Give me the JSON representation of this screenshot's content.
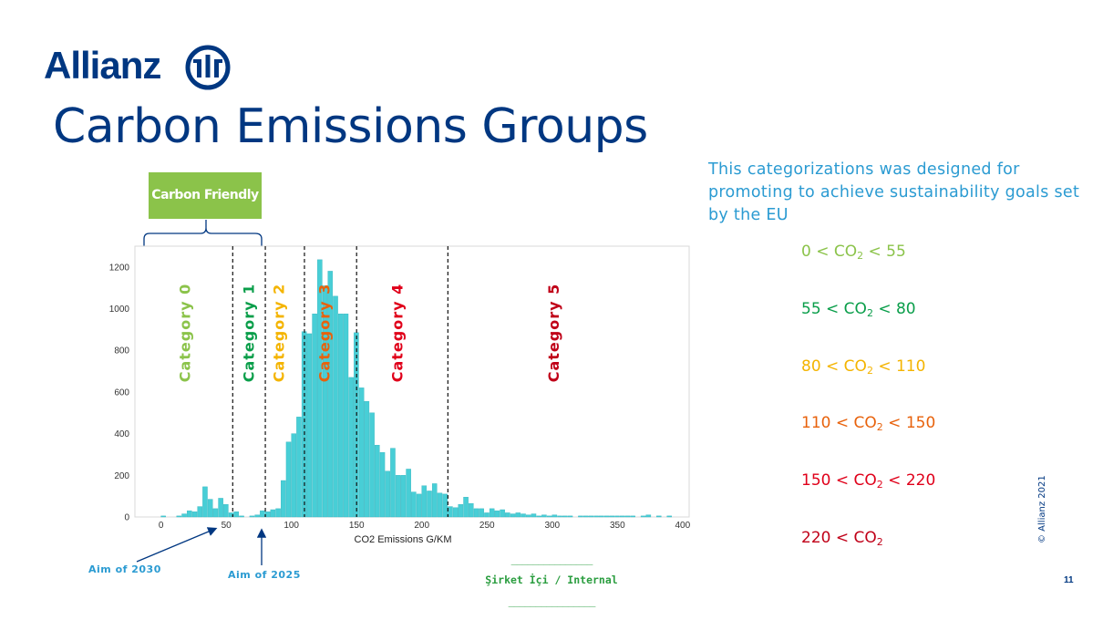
{
  "logo": {
    "text": "Allianz"
  },
  "title": "Carbon Emissions Groups",
  "description": "This categorizations was designed for promoting to achieve sustainability goals set by the EU",
  "callout": {
    "label": "Carbon Friendly"
  },
  "ranges": [
    {
      "pre": "0 < CO",
      "sub": "2",
      "post": " < 55",
      "color": "#8bc34a"
    },
    {
      "pre": "55 < CO",
      "sub": "2",
      "post": " < 80",
      "color": "#0a9e4a"
    },
    {
      "pre": "80 < CO",
      "sub": "2",
      "post": " < 110",
      "color": "#f4b400"
    },
    {
      "pre": "110 < CO",
      "sub": "2",
      "post": " < 150",
      "color": "#e8620c"
    },
    {
      "pre": "150 < CO",
      "sub": "2",
      "post": " < 220",
      "color": "#e0001a"
    },
    {
      "pre": "220 < CO",
      "sub": "2",
      "post": "",
      "color": "#c00018"
    }
  ],
  "annotations": {
    "aim_2030": "Aim of 2030",
    "aim_2025": "Aim of 2025"
  },
  "classification": {
    "rule_top": "_______________",
    "label": "Şirket İçi / Internal",
    "rule_bottom": "________________"
  },
  "footer": {
    "copyright": "© Allianz 2021",
    "page_number": "11"
  },
  "chart_data": {
    "type": "bar",
    "xlabel": "CO2 Emissions G/KM",
    "ylabel": "",
    "xlim": [
      -20,
      405
    ],
    "ylim": [
      0,
      1300
    ],
    "x_ticks": [
      0,
      50,
      100,
      150,
      200,
      250,
      300,
      350,
      400
    ],
    "y_ticks": [
      0,
      200,
      400,
      600,
      800,
      1000,
      1200
    ],
    "bar_color": "#48ced6",
    "bin_width": 4,
    "bins": [
      [
        0,
        5
      ],
      [
        12,
        5
      ],
      [
        16,
        15
      ],
      [
        20,
        30
      ],
      [
        24,
        25
      ],
      [
        28,
        50
      ],
      [
        32,
        145
      ],
      [
        36,
        85
      ],
      [
        40,
        40
      ],
      [
        44,
        90
      ],
      [
        48,
        60
      ],
      [
        52,
        20
      ],
      [
        56,
        25
      ],
      [
        60,
        5
      ],
      [
        68,
        5
      ],
      [
        72,
        10
      ],
      [
        76,
        30
      ],
      [
        80,
        25
      ],
      [
        84,
        35
      ],
      [
        88,
        40
      ],
      [
        92,
        175
      ],
      [
        96,
        360
      ],
      [
        100,
        400
      ],
      [
        104,
        480
      ],
      [
        108,
        890
      ],
      [
        112,
        880
      ],
      [
        116,
        975
      ],
      [
        120,
        1235
      ],
      [
        124,
        1110
      ],
      [
        128,
        1180
      ],
      [
        132,
        1060
      ],
      [
        136,
        975
      ],
      [
        140,
        975
      ],
      [
        144,
        670
      ],
      [
        148,
        885
      ],
      [
        152,
        620
      ],
      [
        156,
        555
      ],
      [
        160,
        500
      ],
      [
        164,
        345
      ],
      [
        168,
        310
      ],
      [
        172,
        220
      ],
      [
        176,
        330
      ],
      [
        180,
        200
      ],
      [
        184,
        200
      ],
      [
        188,
        230
      ],
      [
        192,
        120
      ],
      [
        196,
        110
      ],
      [
        200,
        150
      ],
      [
        204,
        125
      ],
      [
        208,
        160
      ],
      [
        212,
        115
      ],
      [
        216,
        110
      ],
      [
        220,
        50
      ],
      [
        224,
        45
      ],
      [
        228,
        60
      ],
      [
        232,
        95
      ],
      [
        236,
        65
      ],
      [
        240,
        40
      ],
      [
        244,
        40
      ],
      [
        248,
        20
      ],
      [
        252,
        40
      ],
      [
        256,
        30
      ],
      [
        260,
        35
      ],
      [
        264,
        20
      ],
      [
        268,
        15
      ],
      [
        272,
        20
      ],
      [
        276,
        15
      ],
      [
        280,
        10
      ],
      [
        284,
        15
      ],
      [
        288,
        5
      ],
      [
        292,
        10
      ],
      [
        296,
        5
      ],
      [
        300,
        10
      ],
      [
        304,
        5
      ],
      [
        308,
        5
      ],
      [
        312,
        5
      ],
      [
        320,
        5
      ],
      [
        324,
        5
      ],
      [
        328,
        5
      ],
      [
        332,
        5
      ],
      [
        336,
        5
      ],
      [
        340,
        5
      ],
      [
        344,
        5
      ],
      [
        348,
        5
      ],
      [
        352,
        5
      ],
      [
        356,
        5
      ],
      [
        360,
        5
      ],
      [
        368,
        5
      ],
      [
        372,
        10
      ],
      [
        380,
        5
      ],
      [
        388,
        5
      ]
    ],
    "thresholds": [
      55,
      80,
      110,
      150,
      220
    ],
    "categories": [
      {
        "label": "Category 0",
        "x": 19,
        "color": "#8bc34a"
      },
      {
        "label": "Category 1",
        "x": 68,
        "color": "#0a9e4a"
      },
      {
        "label": "Category 2",
        "x": 91,
        "color": "#f4b400"
      },
      {
        "label": "Category 3",
        "x": 126,
        "color": "#e8620c"
      },
      {
        "label": "Category 4",
        "x": 182,
        "color": "#e0001a"
      },
      {
        "label": "Category 5",
        "x": 302,
        "color": "#c00018"
      }
    ]
  }
}
